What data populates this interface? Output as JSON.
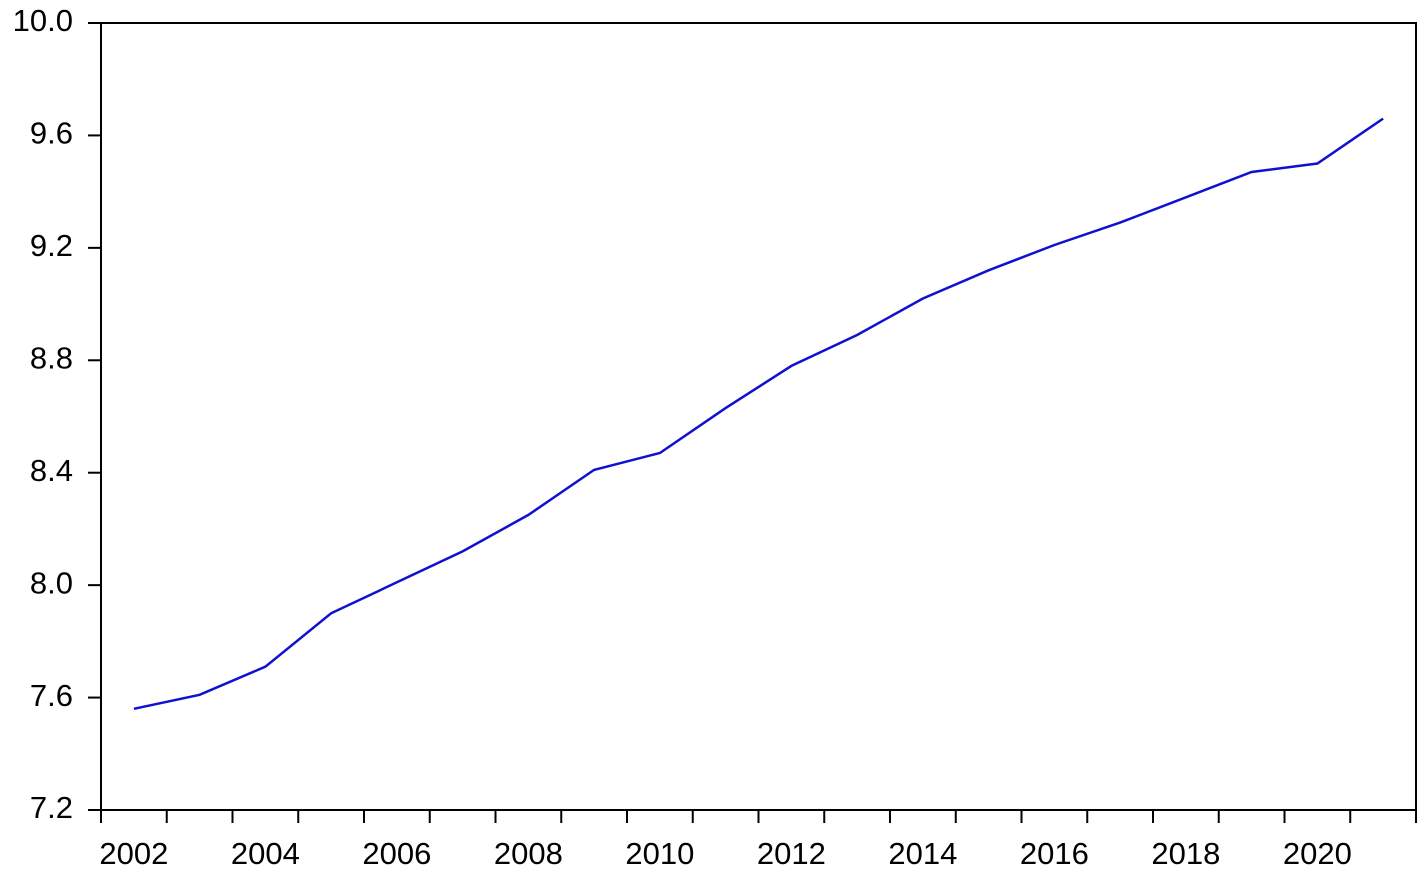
{
  "chart_data": {
    "type": "line",
    "categories": [
      "2002",
      null,
      "2004",
      null,
      "2006",
      null,
      "2008",
      null,
      "2010",
      null,
      "2012",
      null,
      "2014",
      null,
      "2016",
      null,
      "2018",
      null,
      "2020",
      null
    ],
    "values": [
      7.56,
      7.61,
      7.71,
      7.9,
      8.01,
      8.12,
      8.25,
      8.41,
      8.47,
      8.63,
      8.78,
      8.89,
      9.02,
      9.12,
      9.21,
      9.29,
      9.38,
      9.47,
      9.5,
      9.66
    ],
    "color": "#1010d0",
    "ylim": [
      7.2,
      10.0
    ],
    "yticks": [
      7.2,
      7.6,
      {
        "value": 8,
        "label": "8.0"
      },
      8.4,
      8.8,
      9.2,
      9.6,
      {
        "value": 10,
        "label": "10.0"
      }
    ],
    "grid": false
  }
}
